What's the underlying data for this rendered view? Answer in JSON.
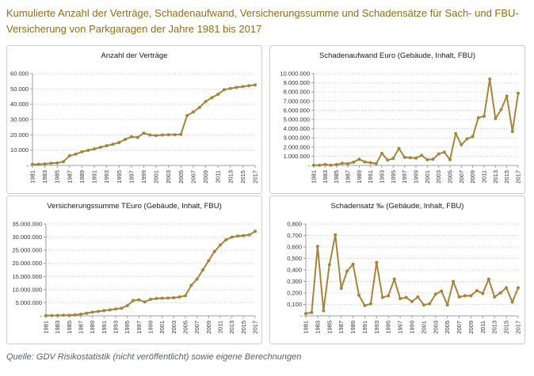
{
  "page": {
    "title": "Kumulierte Anzahl der Verträge, Schadenaufwand, Versicherungssumme und Schadensätze für Sach- und FBU-Versicherung von Parkgaragen der Jahre 1981 bis 2017",
    "source": "Quelle: GDV Risikostatistik (nicht veröffentlicht) sowie eigene Berechnungen"
  },
  "accent_color": "#a6853a",
  "chart_data": [
    {
      "type": "line",
      "title": "Anzahl der Verträge",
      "categories": [
        1981,
        1982,
        1983,
        1984,
        1985,
        1986,
        1987,
        1988,
        1989,
        1990,
        1991,
        1992,
        1993,
        1994,
        1995,
        1996,
        1997,
        1998,
        1999,
        2000,
        2001,
        2002,
        2003,
        2004,
        2005,
        2006,
        2007,
        2008,
        2009,
        2010,
        2011,
        2012,
        2013,
        2014,
        2015,
        2016,
        2017
      ],
      "values": [
        700,
        800,
        1000,
        1400,
        1600,
        2500,
        6300,
        7400,
        8900,
        9900,
        10800,
        11900,
        12900,
        13800,
        15000,
        17000,
        18700,
        18300,
        21100,
        19900,
        19500,
        19900,
        20000,
        20000,
        20300,
        32600,
        34900,
        37900,
        41800,
        44300,
        46500,
        49500,
        50300,
        51000,
        51500,
        52100,
        52600
      ],
      "ylim": [
        0,
        60000
      ],
      "ytick_step": 10000,
      "y_format": "int-de",
      "zero_label": "-",
      "x_tick_interval": 2,
      "grid": "horizontal-dotted",
      "legend": "none",
      "line_color": "#a6853a",
      "marker": "circle"
    },
    {
      "type": "line",
      "title": "Schadenaufwand Euro (Gebäude, Inhalt, FBU)",
      "categories": [
        1981,
        1982,
        1983,
        1984,
        1985,
        1986,
        1987,
        1988,
        1989,
        1990,
        1991,
        1992,
        1993,
        1994,
        1995,
        1996,
        1997,
        1998,
        1999,
        2000,
        2001,
        2002,
        2003,
        2004,
        2005,
        2006,
        2007,
        2008,
        2009,
        2010,
        2011,
        2012,
        2013,
        2014,
        2015,
        2016,
        2017
      ],
      "values": [
        30000,
        30000,
        110000,
        30000,
        90000,
        240000,
        190000,
        350000,
        670000,
        380000,
        300000,
        210000,
        1320000,
        590000,
        750000,
        1850000,
        880000,
        840000,
        790000,
        1100000,
        620000,
        680000,
        1260000,
        1450000,
        620000,
        3470000,
        2250000,
        2900000,
        3150000,
        5200000,
        5350000,
        9400000,
        5100000,
        6080000,
        7550000,
        3700000,
        7850000
      ],
      "ylim": [
        0,
        10000000
      ],
      "ytick_step": 1000000,
      "y_format": "int-de",
      "zero_label": "-",
      "x_tick_interval": 2,
      "grid": "horizontal-dotted",
      "legend": "none",
      "line_color": "#a6853a",
      "marker": "circle"
    },
    {
      "type": "line",
      "title": "Versicherungssumme TEuro (Gebäude, Inhalt, FBU)",
      "categories": [
        1981,
        1982,
        1983,
        1984,
        1985,
        1986,
        1987,
        1988,
        1989,
        1990,
        1991,
        1992,
        1993,
        1994,
        1995,
        1996,
        1997,
        1998,
        1999,
        2000,
        2001,
        2002,
        2003,
        2004,
        2005,
        2006,
        2007,
        2008,
        2009,
        2010,
        2011,
        2012,
        2013,
        2014,
        2015,
        2016,
        2017
      ],
      "values": [
        100000,
        130000,
        160000,
        200000,
        250000,
        350000,
        600000,
        1000000,
        1400000,
        1700000,
        2000000,
        2250000,
        2600000,
        2900000,
        3900000,
        5800000,
        6100000,
        5300000,
        6300000,
        6600000,
        6700000,
        6800000,
        6900000,
        7200000,
        7650000,
        11600000,
        14000000,
        17500000,
        21000000,
        24500000,
        27000000,
        29000000,
        30000000,
        30400000,
        30600000,
        30900000,
        32200000
      ],
      "ylim": [
        0,
        35000000
      ],
      "ytick_step": 5000000,
      "y_format": "int-de",
      "zero_label": "-",
      "x_tick_interval": 2,
      "grid": "horizontal-dotted",
      "legend": "none",
      "line_color": "#a6853a",
      "marker": "circle"
    },
    {
      "type": "line",
      "title": "Schadensatz ‰ (Gebäude, Inhalt, FBU)",
      "categories": [
        1981,
        1982,
        1983,
        1984,
        1985,
        1986,
        1987,
        1988,
        1989,
        1990,
        1991,
        1992,
        1993,
        1994,
        1995,
        1996,
        1997,
        1998,
        1999,
        2000,
        2001,
        2002,
        2003,
        2004,
        2005,
        2006,
        2007,
        2008,
        2009,
        2010,
        2011,
        2012,
        2013,
        2014,
        2015,
        2016,
        2017
      ],
      "values": [
        0.02,
        0.03,
        0.605,
        0.045,
        0.445,
        0.705,
        0.24,
        0.39,
        0.45,
        0.18,
        0.09,
        0.105,
        0.465,
        0.16,
        0.175,
        0.32,
        0.15,
        0.16,
        0.125,
        0.165,
        0.095,
        0.105,
        0.19,
        0.215,
        0.095,
        0.3,
        0.165,
        0.175,
        0.175,
        0.22,
        0.195,
        0.32,
        0.165,
        0.2,
        0.245,
        0.12,
        0.245
      ],
      "ylim": [
        0,
        0.8
      ],
      "ytick_step": 0.1,
      "y_format": "dec3-de",
      "zero_label": "-",
      "x_tick_interval": 2,
      "grid": "horizontal-dotted",
      "legend": "none",
      "line_color": "#a6853a",
      "marker": "circle"
    }
  ]
}
